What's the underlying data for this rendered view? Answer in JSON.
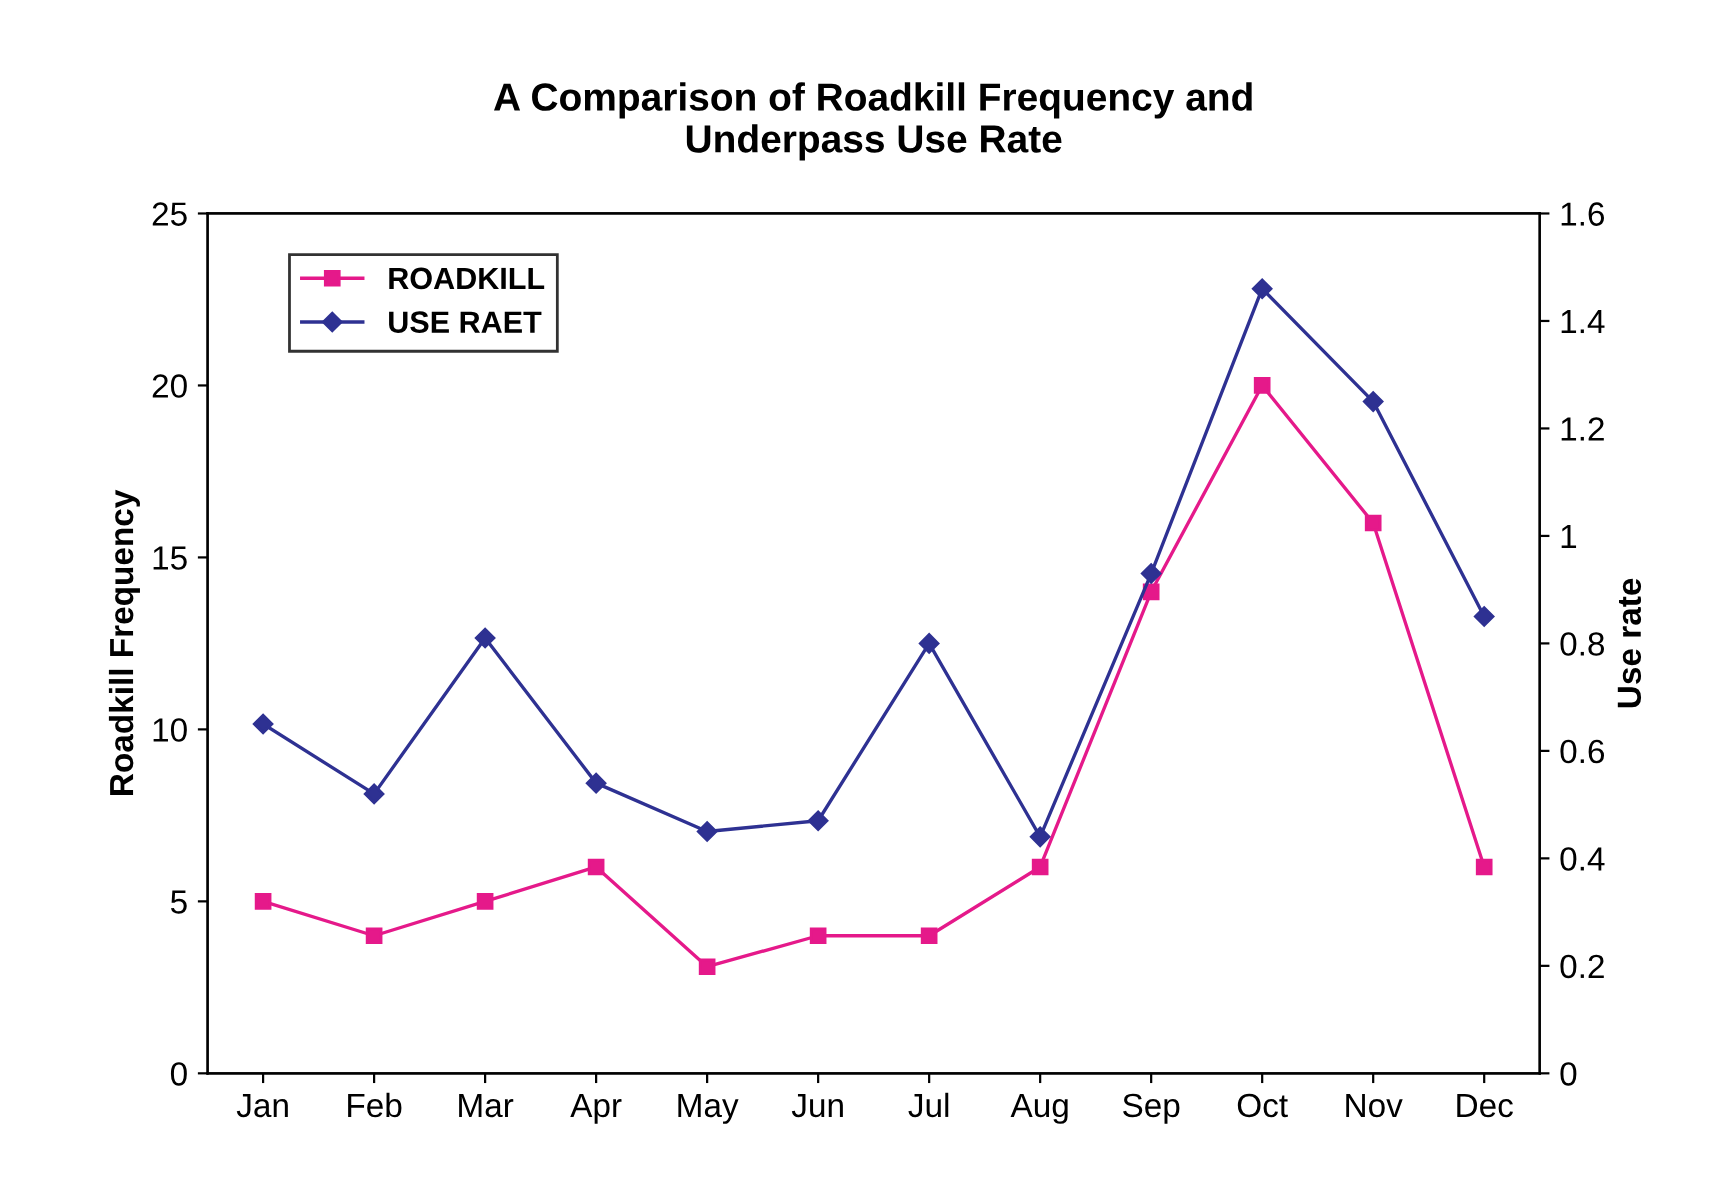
{
  "chart_data": {
    "type": "line",
    "title": "A Comparison of Roadkill Frequency and\nUnderpass Use Rate",
    "ylabel": "Roadkill Frequency",
    "y2label": "Use rate",
    "categories": [
      "Jan",
      "Feb",
      "Mar",
      "Apr",
      "May",
      "Jun",
      "Jul",
      "Aug",
      "Sep",
      "Oct",
      "Nov",
      "Dec"
    ],
    "series": [
      {
        "name": "ROADKILL",
        "color": "#e5198a",
        "marker": "square",
        "values": [
          5,
          4,
          5,
          6,
          3.1,
          4,
          4,
          6,
          14,
          20,
          16,
          6
        ]
      },
      {
        "name": "USE RAET",
        "color": "#2e3192",
        "marker": "diamond",
        "axis": "y2",
        "values": [
          0.65,
          0.52,
          0.81,
          0.54,
          0.45,
          0.47,
          0.8,
          0.44,
          0.93,
          1.46,
          1.25,
          0.85
        ]
      }
    ],
    "ylim": [
      0,
      25
    ],
    "yticks": [
      0,
      5,
      10,
      15,
      20,
      25
    ],
    "y2lim": [
      0,
      1.6
    ],
    "y2ticks": [
      0,
      0.2,
      0.4,
      0.6,
      0.8,
      1,
      1.2,
      1.4,
      1.6
    ],
    "grid": false,
    "legend": "top left",
    "line_style": "solid"
  }
}
